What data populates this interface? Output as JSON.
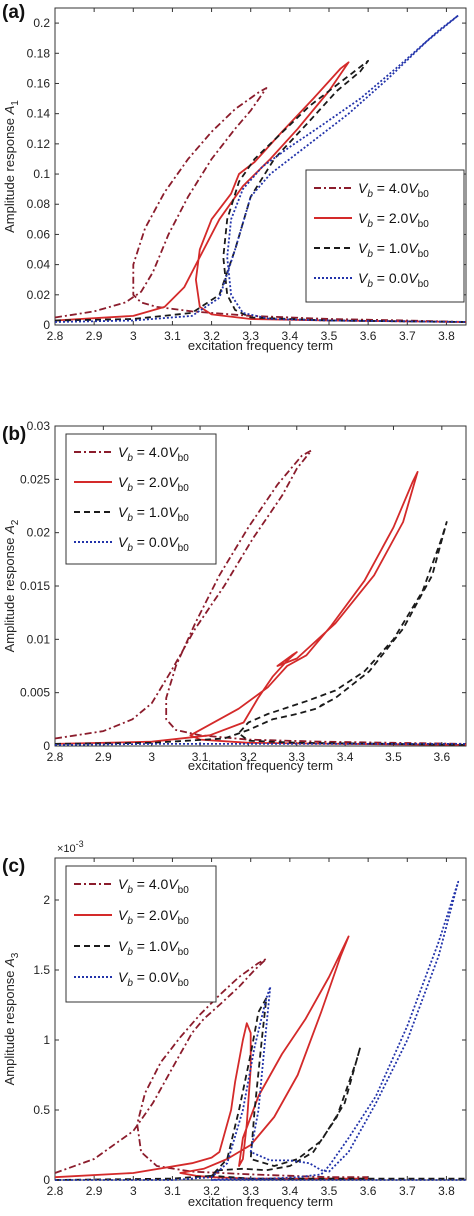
{
  "chart_data": [
    {
      "panel_label": "(a)",
      "type": "line",
      "xlabel": "excitation frequency term",
      "ylabel": "Amplitude response ",
      "ylabel_sym": "A",
      "ylabel_sub": "1",
      "exponent_label": "",
      "xlim": [
        2.8,
        3.85
      ],
      "ylim": [
        0,
        0.21
      ],
      "xticks": [
        2.8,
        2.9,
        3.0,
        3.1,
        3.2,
        3.3,
        3.4,
        3.5,
        3.6,
        3.7,
        3.8
      ],
      "xtick_labels": [
        "2.8",
        "2.9",
        "3",
        "3.1",
        "3.2",
        "3.3",
        "3.4",
        "3.5",
        "3.6",
        "3.7",
        "3.8"
      ],
      "yticks": [
        0,
        0.02,
        0.04,
        0.06,
        0.08,
        0.1,
        0.12,
        0.14,
        0.16,
        0.18,
        0.2
      ],
      "ytick_labels": [
        "0",
        "0.02",
        "0.04",
        "0.06",
        "0.08",
        "0.1",
        "0.12",
        "0.14",
        "0.16",
        "0.18",
        "0.2"
      ],
      "legend_position": "right",
      "series": [
        {
          "name": "4.0",
          "color": "#8b1c2c",
          "dash": "7,3,2,3",
          "x": [
            2.8,
            2.9,
            2.98,
            3.02,
            3.05,
            3.09,
            3.14,
            3.2,
            3.26,
            3.3,
            3.34,
            3.32,
            3.26,
            3.2,
            3.14,
            3.08,
            3.03,
            3.0,
            3.0,
            3.02,
            3.06,
            3.15,
            3.3,
            3.5,
            3.7,
            3.85
          ],
          "y": [
            0.005,
            0.009,
            0.015,
            0.022,
            0.035,
            0.06,
            0.085,
            0.11,
            0.13,
            0.142,
            0.157,
            0.154,
            0.143,
            0.128,
            0.11,
            0.088,
            0.064,
            0.04,
            0.02,
            0.015,
            0.012,
            0.009,
            0.006,
            0.004,
            0.003,
            0.002
          ]
        },
        {
          "name": "2.0",
          "color": "#d42a2a",
          "dash": "",
          "x": [
            2.8,
            3.0,
            3.08,
            3.13,
            3.17,
            3.22,
            3.28,
            3.35,
            3.42,
            3.5,
            3.55,
            3.53,
            3.46,
            3.38,
            3.31,
            3.27,
            3.25,
            3.2,
            3.17,
            3.16,
            3.17,
            3.2,
            3.3,
            3.5,
            3.85
          ],
          "y": [
            0.003,
            0.006,
            0.012,
            0.025,
            0.045,
            0.07,
            0.092,
            0.11,
            0.13,
            0.155,
            0.174,
            0.17,
            0.15,
            0.128,
            0.108,
            0.1,
            0.087,
            0.07,
            0.05,
            0.03,
            0.012,
            0.007,
            0.004,
            0.003,
            0.002
          ]
        },
        {
          "name": "1.0",
          "color": "#1a1a1a",
          "dash": "6,4",
          "x": [
            2.8,
            3.0,
            3.15,
            3.22,
            3.26,
            3.3,
            3.36,
            3.45,
            3.52,
            3.58,
            3.6,
            3.55,
            3.45,
            3.37,
            3.31,
            3.27,
            3.24,
            3.23,
            3.24,
            3.26,
            3.3,
            3.5,
            3.85
          ],
          "y": [
            0.003,
            0.004,
            0.008,
            0.02,
            0.05,
            0.085,
            0.11,
            0.135,
            0.155,
            0.168,
            0.175,
            0.165,
            0.145,
            0.125,
            0.11,
            0.095,
            0.07,
            0.045,
            0.02,
            0.01,
            0.005,
            0.003,
            0.002
          ]
        },
        {
          "name": "0.0",
          "color": "#2233aa",
          "dash": "2,2",
          "x": [
            2.8,
            3.0,
            3.15,
            3.22,
            3.26,
            3.3,
            3.35,
            3.45,
            3.55,
            3.65,
            3.75,
            3.83,
            3.78,
            3.68,
            3.58,
            3.48,
            3.4,
            3.33,
            3.28,
            3.25,
            3.24,
            3.25,
            3.28,
            3.35,
            3.5,
            3.85
          ],
          "y": [
            0.002,
            0.003,
            0.006,
            0.018,
            0.05,
            0.085,
            0.1,
            0.12,
            0.14,
            0.163,
            0.188,
            0.205,
            0.195,
            0.172,
            0.15,
            0.132,
            0.118,
            0.105,
            0.09,
            0.07,
            0.045,
            0.02,
            0.008,
            0.004,
            0.003,
            0.002
          ]
        }
      ]
    },
    {
      "panel_label": "(b)",
      "type": "line",
      "xlabel": "excitation frequency term",
      "ylabel": "Amplitude response ",
      "ylabel_sym": "A",
      "ylabel_sub": "2",
      "exponent_label": "",
      "xlim": [
        2.8,
        3.65
      ],
      "ylim": [
        0,
        0.03
      ],
      "xticks": [
        2.8,
        2.9,
        3.0,
        3.1,
        3.2,
        3.3,
        3.4,
        3.5,
        3.6
      ],
      "xtick_labels": [
        "2.8",
        "2.9",
        "3",
        "3.1",
        "3.2",
        "3.3",
        "3.4",
        "3.5",
        "3.6"
      ],
      "yticks": [
        0,
        0.005,
        0.01,
        0.015,
        0.02,
        0.025,
        0.03
      ],
      "ytick_labels": [
        "0",
        "0.005",
        "0.01",
        "0.015",
        "0.02",
        "0.025",
        "0.03"
      ],
      "legend_position": "top-left",
      "series": [
        {
          "name": "4.0",
          "color": "#8b1c2c",
          "dash": "7,3,2,3",
          "x": [
            2.8,
            2.9,
            2.96,
            3.0,
            3.04,
            3.09,
            3.15,
            3.21,
            3.27,
            3.3,
            3.33,
            3.31,
            3.26,
            3.2,
            3.14,
            3.09,
            3.05,
            3.03,
            3.03,
            3.05,
            3.1,
            3.2,
            3.35,
            3.5,
            3.65
          ],
          "y": [
            0.0007,
            0.0014,
            0.0025,
            0.004,
            0.007,
            0.011,
            0.015,
            0.0195,
            0.0235,
            0.026,
            0.0277,
            0.0272,
            0.0245,
            0.0205,
            0.016,
            0.0115,
            0.0075,
            0.0045,
            0.0025,
            0.0015,
            0.001,
            0.0006,
            0.0004,
            0.0003,
            0.0002
          ]
        },
        {
          "name": "2.0",
          "color": "#d42a2a",
          "dash": "",
          "x": [
            2.8,
            3.0,
            3.12,
            3.19,
            3.22,
            3.25,
            3.28,
            3.3,
            3.29,
            3.26,
            3.3,
            3.38,
            3.46,
            3.52,
            3.55,
            3.54,
            3.5,
            3.44,
            3.37,
            3.32,
            3.28,
            3.26,
            3.24,
            3.18,
            3.12,
            3.08,
            3.1,
            3.2,
            3.4,
            3.65
          ],
          "y": [
            0.0002,
            0.0004,
            0.001,
            0.0022,
            0.0045,
            0.0065,
            0.008,
            0.0088,
            0.0085,
            0.0075,
            0.0082,
            0.0115,
            0.016,
            0.021,
            0.0257,
            0.0248,
            0.0205,
            0.0155,
            0.0112,
            0.0085,
            0.0075,
            0.0065,
            0.0055,
            0.0035,
            0.002,
            0.001,
            0.0006,
            0.0003,
            0.0002,
            0.0001
          ]
        },
        {
          "name": "1.0",
          "color": "#1a1a1a",
          "dash": "6,4",
          "x": [
            2.8,
            3.0,
            3.15,
            3.2,
            3.25,
            3.3,
            3.34,
            3.36,
            3.35,
            3.38,
            3.45,
            3.52,
            3.58,
            3.61,
            3.6,
            3.56,
            3.5,
            3.44,
            3.38,
            3.32,
            3.28,
            3.24,
            3.2,
            3.18,
            3.2,
            3.3,
            3.5,
            3.65
          ],
          "y": [
            0.0002,
            0.0003,
            0.0007,
            0.0015,
            0.0025,
            0.003,
            0.0035,
            0.004,
            0.0038,
            0.0045,
            0.007,
            0.011,
            0.016,
            0.021,
            0.0195,
            0.0145,
            0.01,
            0.007,
            0.0052,
            0.0042,
            0.0036,
            0.003,
            0.0022,
            0.0012,
            0.0005,
            0.0003,
            0.0002,
            0.0001
          ]
        },
        {
          "name": "0.0",
          "color": "#2233aa",
          "dash": "2,2",
          "x": [
            2.8,
            3.0,
            3.2,
            3.4,
            3.65
          ],
          "y": [
            0.0001,
            0.0002,
            0.0002,
            0.0002,
            0.0002
          ]
        }
      ]
    },
    {
      "panel_label": "(c)",
      "type": "line",
      "xlabel": "excitation frequency term",
      "ylabel": "Amplitude response ",
      "ylabel_sym": "A",
      "ylabel_sub": "3",
      "exponent_label": "×10-3",
      "xlim": [
        2.8,
        3.85
      ],
      "ylim": [
        0,
        2.3
      ],
      "xticks": [
        2.8,
        2.9,
        3.0,
        3.1,
        3.2,
        3.3,
        3.4,
        3.5,
        3.6,
        3.7,
        3.8
      ],
      "xtick_labels": [
        "2.8",
        "2.9",
        "3",
        "3.1",
        "3.2",
        "3.3",
        "3.4",
        "3.5",
        "3.6",
        "3.7",
        "3.8"
      ],
      "yticks": [
        0,
        0.5,
        1,
        1.5,
        2
      ],
      "ytick_labels": [
        "0",
        "0.5",
        "1",
        "1.5",
        "2"
      ],
      "legend_position": "top-left",
      "series": [
        {
          "name": "4.0",
          "color": "#8b1c2c",
          "dash": "7,3,2,3",
          "x": [
            2.8,
            2.9,
            3.0,
            3.05,
            3.1,
            3.15,
            3.18,
            3.22,
            3.27,
            3.31,
            3.34,
            3.32,
            3.27,
            3.22,
            3.17,
            3.12,
            3.07,
            3.03,
            3.01,
            3.02,
            3.06,
            3.15,
            3.3,
            3.5,
            3.6
          ],
          "y": [
            0.05,
            0.15,
            0.35,
            0.55,
            0.8,
            1.05,
            1.15,
            1.25,
            1.38,
            1.5,
            1.58,
            1.55,
            1.45,
            1.32,
            1.18,
            1.02,
            0.84,
            0.62,
            0.4,
            0.2,
            0.1,
            0.06,
            0.04,
            0.02,
            0.02
          ]
        },
        {
          "name": "2.0",
          "color": "#d42a2a",
          "dash": "",
          "x": [
            2.8,
            3.0,
            3.15,
            3.2,
            3.22,
            3.23,
            3.25,
            3.26,
            3.28,
            3.29,
            3.3,
            3.3,
            3.29,
            3.28,
            3.27,
            3.28,
            3.32,
            3.38,
            3.44,
            3.5,
            3.55,
            3.53,
            3.48,
            3.42,
            3.36,
            3.3,
            3.24,
            3.18,
            3.12,
            3.16,
            3.2,
            3.3,
            3.5,
            3.6
          ],
          "y": [
            0.02,
            0.05,
            0.12,
            0.16,
            0.2,
            0.3,
            0.5,
            0.7,
            1.0,
            1.12,
            1.05,
            0.8,
            0.4,
            0.15,
            0.1,
            0.3,
            0.6,
            0.9,
            1.15,
            1.45,
            1.74,
            1.6,
            1.2,
            0.75,
            0.45,
            0.25,
            0.15,
            0.08,
            0.05,
            0.03,
            0.02,
            0.01,
            0.01,
            0.01
          ]
        },
        {
          "name": "1.0",
          "color": "#1a1a1a",
          "dash": "6,4",
          "x": [
            2.8,
            3.1,
            3.2,
            3.24,
            3.27,
            3.3,
            3.32,
            3.34,
            3.33,
            3.31,
            3.3,
            3.36,
            3.42,
            3.48,
            3.54,
            3.58,
            3.57,
            3.52,
            3.46,
            3.4,
            3.34,
            3.28,
            3.22,
            3.2,
            3.3,
            3.5,
            3.85
          ],
          "y": [
            0.0,
            0.01,
            0.03,
            0.15,
            0.5,
            0.9,
            1.2,
            1.3,
            1.05,
            0.5,
            0.15,
            0.1,
            0.15,
            0.28,
            0.55,
            0.95,
            0.85,
            0.45,
            0.2,
            0.1,
            0.07,
            0.08,
            0.07,
            0.03,
            0.01,
            0.01,
            0.01
          ]
        },
        {
          "name": "0.0",
          "color": "#2233aa",
          "dash": "2,2",
          "x": [
            2.8,
            3.1,
            3.2,
            3.24,
            3.28,
            3.31,
            3.34,
            3.35,
            3.34,
            3.32,
            3.3,
            3.35,
            3.4,
            3.45,
            3.48,
            3.5,
            3.55,
            3.62,
            3.7,
            3.78,
            3.83,
            3.78,
            3.7,
            3.62,
            3.55,
            3.5,
            3.48,
            3.42,
            3.35,
            3.3,
            3.25,
            3.2,
            3.5,
            3.85
          ],
          "y": [
            0.0,
            0.0,
            0.02,
            0.12,
            0.5,
            0.95,
            1.3,
            1.38,
            1.1,
            0.5,
            0.2,
            0.14,
            0.14,
            0.12,
            0.07,
            0.06,
            0.2,
            0.55,
            1.0,
            1.6,
            2.13,
            1.7,
            1.1,
            0.6,
            0.3,
            0.1,
            0.04,
            0.02,
            0.01,
            0.01,
            0.01,
            0.0,
            0.0,
            0.0
          ]
        }
      ]
    }
  ]
}
